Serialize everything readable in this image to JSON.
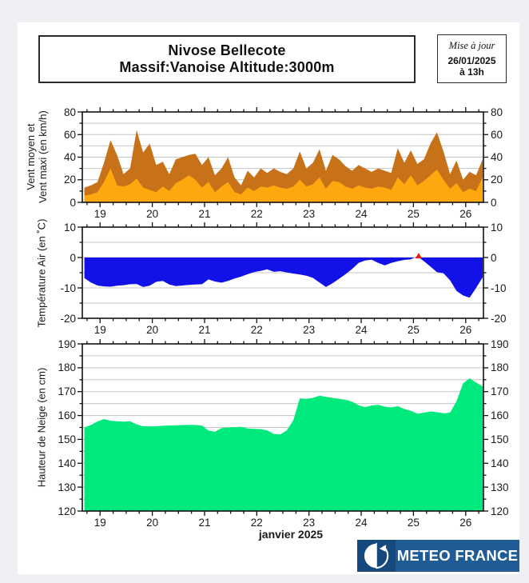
{
  "header": {
    "title_line1": "Nivose Bellecote",
    "title_line2": "Massif:Vanoise Altitude:3000m",
    "update": {
      "label": "Mise à jour",
      "date": "26/01/2025",
      "time": "à 13h"
    }
  },
  "footer": {
    "x_axis_title": "janvier 2025",
    "logo_text": "METEO FRANCE"
  },
  "colors": {
    "page_bg": "#edeff2",
    "panel_bg": "#ffffff",
    "wind_maxi": "#c77219",
    "wind_moyen": "#ffa70f",
    "temperature": "#1212e8",
    "snow": "#00e97c",
    "marker_red": "#ee2200",
    "grid": "#c4c4c4",
    "frame": "#111111",
    "logo_bg": "#1f5c95",
    "logo_mark_bg": "#15497d"
  },
  "chart_data": [
    {
      "type": "area",
      "name": "vent",
      "ylabel1": "Vent moyen et",
      "ylabel2": "Vent maxi (en km/h)",
      "xlabel_month": "janvier 2025",
      "xlim": [
        18.66,
        26.34
      ],
      "ylim": [
        0,
        80
      ],
      "yticks": [
        0,
        20,
        40,
        60,
        80
      ],
      "grid_step": 10,
      "xticks": [
        19,
        20,
        21,
        22,
        23,
        24,
        25,
        26
      ],
      "x_minor_step": 0.25,
      "x_start": 18.7,
      "x_step": 0.125,
      "series": [
        {
          "name": "Vent maxi",
          "color": "#c77219",
          "baseline": 0,
          "values": [
            13,
            15,
            18,
            35,
            55,
            42,
            25,
            30,
            64,
            44,
            52,
            33,
            36,
            25,
            38,
            40,
            42,
            43,
            33,
            40,
            24,
            30,
            40,
            22,
            15,
            28,
            22,
            30,
            26,
            30,
            27,
            25,
            30,
            45,
            30,
            35,
            47,
            28,
            42,
            38,
            32,
            28,
            33,
            30,
            27,
            30,
            28,
            26,
            48,
            35,
            46,
            34,
            38,
            52,
            62,
            45,
            25,
            37,
            20,
            27,
            24,
            38
          ]
        },
        {
          "name": "Vent moyen",
          "color": "#ffa70f",
          "baseline": 0,
          "values": [
            6,
            7,
            9,
            18,
            30,
            15,
            14,
            16,
            21,
            13,
            11,
            9,
            14,
            10,
            17,
            20,
            24,
            20,
            13,
            18,
            9,
            14,
            18,
            9,
            7,
            13,
            10,
            14,
            13,
            15,
            13,
            12,
            14,
            20,
            14,
            16,
            22,
            12,
            19,
            18,
            14,
            12,
            15,
            13,
            12,
            14,
            13,
            11,
            22,
            16,
            24,
            15,
            19,
            24,
            29,
            20,
            12,
            17,
            9,
            12,
            10,
            22
          ]
        }
      ]
    },
    {
      "type": "area",
      "name": "temperature",
      "ylabel1": "Température Air (en ˚C)",
      "xlim": [
        18.66,
        26.34
      ],
      "ylim": [
        -20,
        10
      ],
      "yticks": [
        -20,
        -10,
        0,
        10
      ],
      "grid_step": 5,
      "xticks": [
        19,
        20,
        21,
        22,
        23,
        24,
        25,
        26
      ],
      "x_minor_step": 0.25,
      "x_start": 18.7,
      "x_step": 0.125,
      "series": [
        {
          "name": "Température air",
          "color": "#1212e8",
          "baseline": 0,
          "values": [
            -6.8,
            -8.2,
            -9.2,
            -9.5,
            -9.6,
            -9.3,
            -9.1,
            -8.8,
            -8.7,
            -9.7,
            -9.3,
            -8.0,
            -7.7,
            -8.9,
            -9.4,
            -9.2,
            -9.0,
            -8.9,
            -8.8,
            -7.2,
            -7.9,
            -8.3,
            -7.7,
            -6.9,
            -6.3,
            -5.5,
            -4.8,
            -4.4,
            -3.9,
            -4.7,
            -4.5,
            -4.9,
            -5.3,
            -5.6,
            -6.0,
            -6.7,
            -8.2,
            -9.7,
            -8.5,
            -7.0,
            -5.5,
            -3.8,
            -1.8,
            -1.0,
            -0.7,
            -1.8,
            -2.6,
            -1.8,
            -1.2,
            -0.8,
            -0.6,
            0.4,
            -1.2,
            -3.0,
            -4.8,
            -5.2,
            -7.5,
            -11.0,
            -12.5,
            -13.2,
            -10.0,
            -6.5
          ]
        }
      ],
      "marker": {
        "x": 25.1,
        "y": 0.5,
        "color": "#ee2200",
        "shape": "triangle-up"
      }
    },
    {
      "type": "area",
      "name": "neige",
      "ylabel1": "Hauteur de Neige (en cm)",
      "xlim": [
        18.66,
        26.34
      ],
      "ylim": [
        120,
        190
      ],
      "yticks": [
        120,
        130,
        140,
        150,
        160,
        170,
        180,
        190
      ],
      "grid_step": 5,
      "xticks": [
        19,
        20,
        21,
        22,
        23,
        24,
        25,
        26
      ],
      "x_minor_step": 0.25,
      "x_start": 18.7,
      "x_step": 0.125,
      "series": [
        {
          "name": "Hauteur de neige",
          "color": "#00e97c",
          "baseline": 120,
          "values": [
            155.0,
            156.0,
            157.5,
            158.5,
            157.8,
            157.6,
            157.4,
            157.6,
            156.3,
            155.5,
            155.4,
            155.5,
            155.7,
            155.8,
            155.9,
            156.0,
            156.1,
            156.0,
            155.8,
            153.7,
            153.2,
            154.7,
            155.0,
            155.1,
            155.3,
            154.6,
            154.4,
            154.3,
            153.8,
            152.3,
            152.1,
            153.8,
            158.0,
            167.2,
            167.0,
            167.4,
            168.3,
            167.8,
            167.4,
            167.0,
            166.6,
            165.8,
            164.3,
            163.5,
            164.2,
            164.5,
            163.7,
            163.4,
            163.9,
            162.7,
            162.0,
            160.8,
            161.2,
            161.7,
            161.4,
            160.9,
            161.2,
            166.0,
            173.5,
            175.6,
            173.8,
            172.2
          ]
        }
      ]
    }
  ]
}
